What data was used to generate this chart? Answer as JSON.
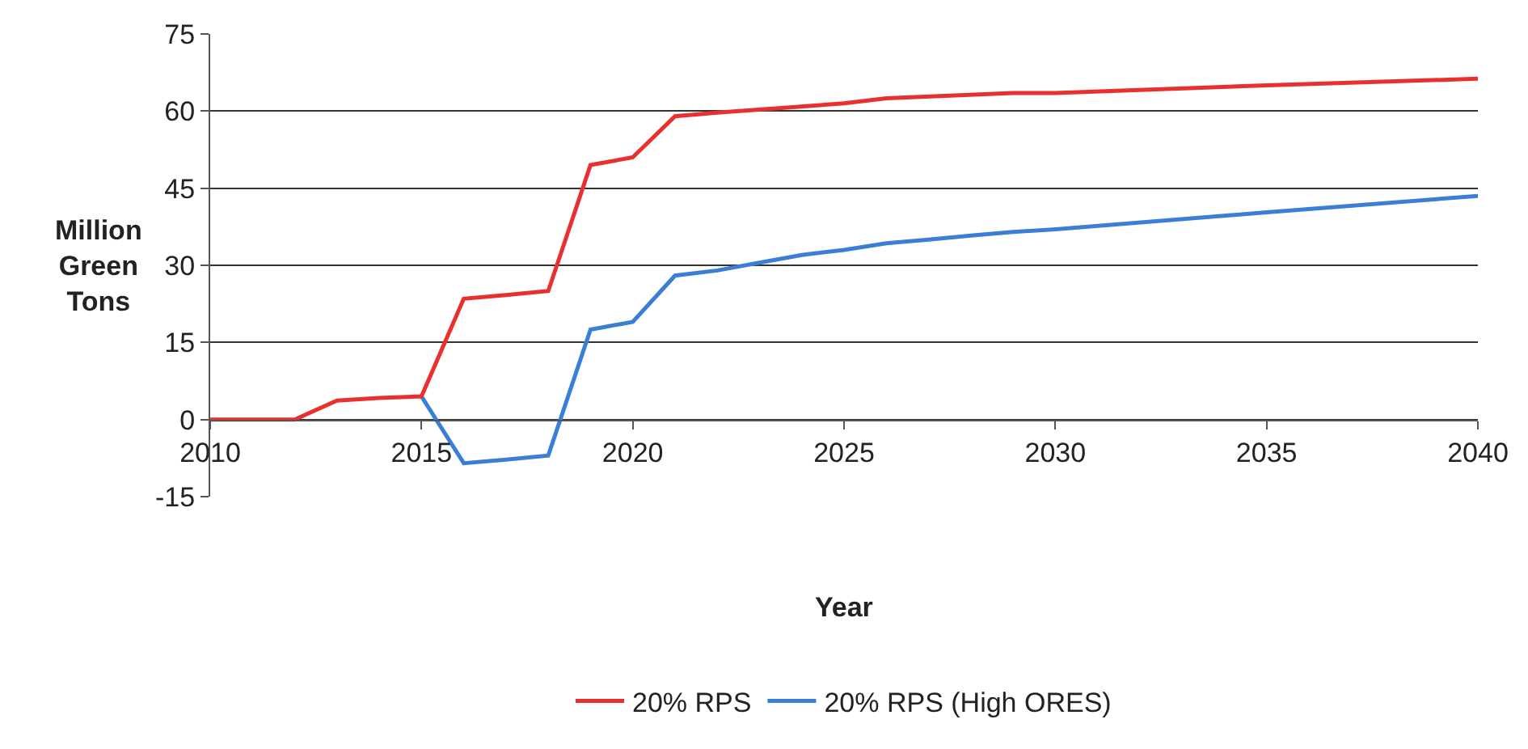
{
  "chart_data": {
    "type": "line",
    "xlabel": "Year",
    "ylabel": "Million Green Tons",
    "xlim": [
      2010,
      2040
    ],
    "xticks": [
      2010,
      2015,
      2020,
      2025,
      2030,
      2035,
      2040
    ],
    "ylim": [
      -15,
      75
    ],
    "yticks": [
      -15,
      0,
      15,
      30,
      45,
      60,
      75
    ],
    "grid": "y",
    "legend": "bottom",
    "marker": "none",
    "line_style": "solid",
    "series": [
      {
        "name": "20% RPS (High ORES)",
        "color": "#3a7fd5",
        "x": [
          2015,
          2016,
          2017,
          2018,
          2019,
          2020,
          2021,
          2022,
          2023,
          2024,
          2025,
          2026,
          2027,
          2028,
          2029,
          2030,
          2035,
          2040
        ],
        "values": [
          4.5,
          -8.5,
          -7.8,
          -7,
          17.5,
          19,
          28,
          29,
          30.5,
          32,
          33,
          34.3,
          35,
          35.8,
          36.5,
          37,
          40.3,
          43.5
        ]
      },
      {
        "name": "20% RPS",
        "color": "#e8312f",
        "x": [
          2010,
          2011,
          2012,
          2013,
          2014,
          2015,
          2016,
          2017,
          2018,
          2019,
          2020,
          2021,
          2022,
          2025,
          2026,
          2029,
          2030,
          2035,
          2040
        ],
        "values": [
          0,
          0,
          0,
          3.7,
          4.2,
          4.5,
          23.5,
          24.2,
          25,
          49.5,
          51,
          59,
          59.7,
          61.5,
          62.5,
          63.5,
          63.5,
          65,
          66.3
        ]
      }
    ]
  }
}
